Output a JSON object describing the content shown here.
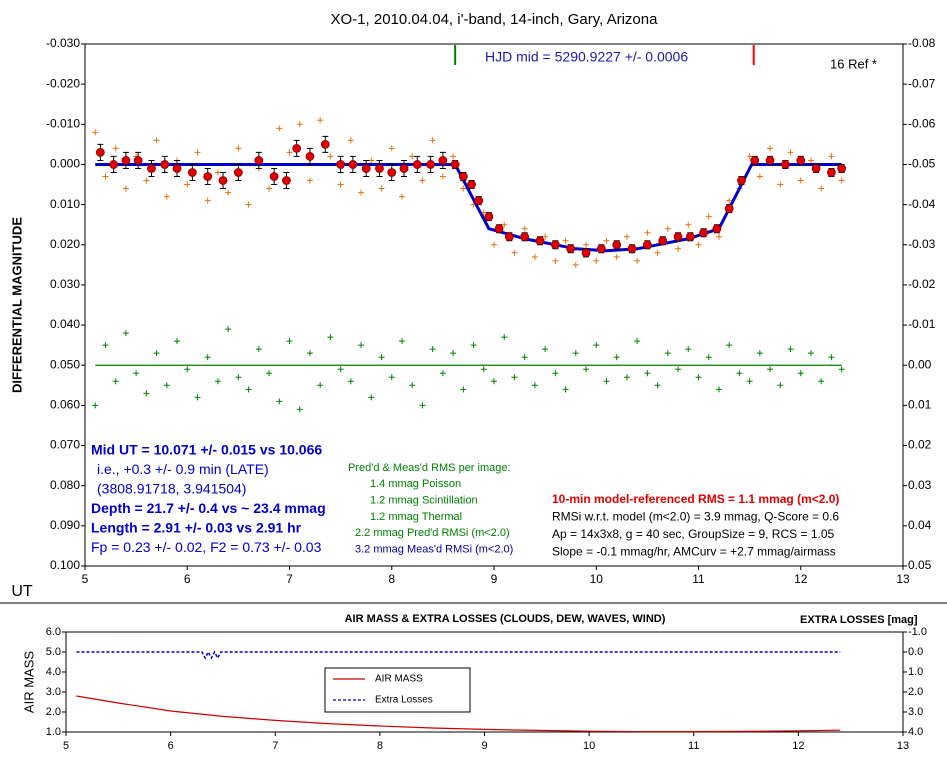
{
  "chart_data": [
    {
      "type": "scatter",
      "title": "XO-1, 2010.04.04, i'-band, 14-inch, Gary, Arizona",
      "y_label": "DIFFERENTIAL MAGNITUDE",
      "x_label": "UT",
      "hjd_note": "HJD mid = 5290.9227 +/- 0.0006",
      "ref_note": "16 Ref *",
      "markers": [
        {
          "x": 8.62,
          "color": "#008000"
        },
        {
          "x": 11.54,
          "color": "#ff0000"
        }
      ],
      "xlim": [
        5,
        13
      ],
      "xticks": [
        5,
        6,
        7,
        8,
        9,
        10,
        11,
        12,
        13
      ],
      "ylim": [
        0.1,
        -0.03
      ],
      "yticks": [
        {
          "value": -0.03,
          "label": "-0.030"
        },
        {
          "value": -0.02,
          "label": "-0.020"
        },
        {
          "value": -0.01,
          "label": "-0.010"
        },
        {
          "value": 0,
          "label": "0.000"
        },
        {
          "value": 0.01,
          "label": "0.010"
        },
        {
          "value": 0.02,
          "label": "0.020"
        },
        {
          "value": 0.03,
          "label": "0.030"
        },
        {
          "value": 0.04,
          "label": "0.040"
        },
        {
          "value": 0.05,
          "label": "0.050"
        },
        {
          "value": 0.06,
          "label": "0.060"
        },
        {
          "value": 0.07,
          "label": "0.070"
        },
        {
          "value": 0.08,
          "label": "0.080"
        },
        {
          "value": 0.09,
          "label": "0.090"
        },
        {
          "value": 0.1,
          "label": "0.100"
        }
      ],
      "y2lim": [
        0.05,
        -0.08
      ],
      "y2ticks": [
        -0.08,
        -0.07,
        -0.06,
        -0.05,
        -0.04,
        -0.03,
        -0.02,
        -0.01,
        {
          "value": 0,
          "label": "0.00"
        },
        0.01,
        0.02,
        0.03,
        0.04,
        0.05
      ],
      "grid": false,
      "x": [
        5.1,
        5.2,
        5.3,
        5.4,
        5.5,
        5.6,
        5.7,
        5.8,
        5.9,
        6.0,
        6.1,
        6.2,
        6.3,
        6.4,
        6.5,
        6.6,
        6.7,
        6.8,
        6.9,
        7.0,
        7.1,
        7.2,
        7.3,
        7.4,
        7.5,
        7.6,
        7.7,
        7.8,
        7.9,
        8.0,
        8.1,
        8.2,
        8.3,
        8.4,
        8.5,
        8.6,
        8.7,
        8.8,
        8.9,
        9.0,
        9.1,
        9.2,
        9.3,
        9.4,
        9.5,
        9.6,
        9.7,
        9.8,
        9.9,
        10.0,
        10.1,
        10.2,
        10.3,
        10.4,
        10.5,
        10.6,
        10.7,
        10.8,
        10.9,
        11.0,
        11.1,
        11.2,
        11.3,
        11.4,
        11.5,
        11.6,
        11.7,
        11.8,
        11.9,
        12.0,
        12.1,
        12.2,
        12.3,
        12.4
      ],
      "series": [
        {
          "marker": "plus",
          "color": "#e87010",
          "axis": "y",
          "values": [
            -0.008,
            0.003,
            -0.004,
            0.006,
            -0.002,
            0.004,
            -0.006,
            0.008,
            -0.001,
            0.005,
            -0.003,
            0.009,
            0.002,
            0.007,
            -0.004,
            0.01,
            0.001,
            0.006,
            -0.009,
            -0.003,
            -0.01,
            0.004,
            -0.011,
            -0.002,
            0.005,
            -0.006,
            0.007,
            -0.001,
            0.006,
            -0.004,
            0.008,
            -0.002,
            0.004,
            -0.006,
            0.003,
            -0.002,
            0.006,
            0.01,
            0.012,
            0.02,
            0.015,
            0.022,
            0.016,
            0.023,
            0.018,
            0.024,
            0.019,
            0.025,
            0.02,
            0.024,
            0.019,
            0.023,
            0.018,
            0.024,
            0.017,
            0.022,
            0.016,
            0.021,
            0.015,
            0.02,
            0.013,
            0.018,
            0.009,
            0.006,
            -0.002,
            0.003,
            -0.004,
            0.005,
            -0.003,
            0.004,
            -0.001,
            0.006,
            -0.002,
            0.004
          ]
        },
        {
          "marker": "plus",
          "color": "#008000",
          "axis": "y2",
          "values": [
            0.01,
            -0.005,
            0.004,
            -0.008,
            0.002,
            0.007,
            -0.003,
            0.005,
            -0.006,
            0.001,
            0.008,
            -0.002,
            0.004,
            -0.009,
            0.003,
            0.006,
            -0.004,
            0.002,
            0.009,
            -0.006,
            0.011,
            -0.003,
            0.005,
            -0.007,
            0.001,
            0.004,
            -0.005,
            0.008,
            -0.002,
            0.003,
            -0.006,
            0.005,
            0.01,
            -0.004,
            0.002,
            -0.003,
            0.006,
            -0.005,
            0.001,
            0.004,
            -0.007,
            0.003,
            -0.002,
            0.005,
            -0.004,
            0.002,
            0.006,
            -0.003,
            0.001,
            -0.005,
            0.004,
            -0.002,
            0.003,
            -0.006,
            0.002,
            0.005,
            -0.003,
            0.001,
            -0.004,
            0.003,
            -0.002,
            0.006,
            -0.005,
            0.002,
            0.004,
            -0.003,
            0.001,
            0.005,
            -0.004,
            0.002,
            -0.003,
            0.004,
            -0.002,
            0.001
          ]
        },
        {
          "marker": "line",
          "color": "#008000",
          "axis": "y2",
          "x": [
            5.1,
            12.4
          ],
          "values": [
            0,
            0
          ]
        },
        {
          "marker": "line-bold",
          "color": "#0000cc",
          "axis": "y",
          "x": [
            5.1,
            8.62,
            8.95,
            9.3,
            9.8,
            10.1,
            10.4,
            10.9,
            11.2,
            11.52,
            12.4
          ],
          "values": [
            0,
            0,
            0.016,
            0.0185,
            0.021,
            0.0215,
            0.021,
            0.0185,
            0.016,
            0,
            0
          ]
        },
        {
          "marker": "circle-error",
          "color": "#e00000",
          "axis": "y",
          "x": [
            5.15,
            5.28,
            5.4,
            5.52,
            5.65,
            5.78,
            5.9,
            6.05,
            6.2,
            6.35,
            6.5,
            6.7,
            6.85,
            6.97,
            7.07,
            7.2,
            7.35,
            7.5,
            7.62,
            7.75,
            7.88,
            8.0,
            8.12,
            8.25,
            8.38,
            8.5,
            8.62,
            8.7,
            8.78,
            8.85,
            8.95,
            9.05,
            9.15,
            9.3,
            9.45,
            9.6,
            9.75,
            9.9,
            10.05,
            10.2,
            10.35,
            10.5,
            10.65,
            10.8,
            10.92,
            11.05,
            11.18,
            11.3,
            11.42,
            11.55,
            11.7,
            11.85,
            12.0,
            12.15,
            12.3,
            12.4
          ],
          "values": [
            -0.003,
            0,
            -0.001,
            -0.001,
            0.001,
            0,
            0.001,
            0.002,
            0.003,
            0.004,
            0.002,
            -0.001,
            0.003,
            0.004,
            -0.004,
            -0.002,
            -0.005,
            0,
            0,
            0.001,
            0.001,
            0.002,
            0.001,
            0,
            0,
            -0.001,
            0,
            0.003,
            0.005,
            0.009,
            0.013,
            0.016,
            0.018,
            0.018,
            0.019,
            0.02,
            0.021,
            0.022,
            0.021,
            0.02,
            0.021,
            0.02,
            0.019,
            0.018,
            0.018,
            0.017,
            0.016,
            0.011,
            0.004,
            -0.001,
            -0.001,
            0,
            -0.001,
            0.001,
            0.002,
            0.001
          ],
          "errors": [
            0.002,
            0.002,
            0.002,
            0.002,
            0.002,
            0.002,
            0.002,
            0.002,
            0.002,
            0.002,
            0.002,
            0.002,
            0.002,
            0.002,
            0.002,
            0.002,
            0.002,
            0.002,
            0.002,
            0.002,
            0.002,
            0.002,
            0.002,
            0.002,
            0.002,
            0.002,
            0.001,
            0.001,
            0.001,
            0.001,
            0.001,
            0.001,
            0.001,
            0.001,
            0.001,
            0.001,
            0.001,
            0.001,
            0.001,
            0.001,
            0.001,
            0.001,
            0.001,
            0.001,
            0.001,
            0.001,
            0.001,
            0.001,
            0.001,
            0.001,
            0.001,
            0.001,
            0.001,
            0.001,
            0.001,
            0.001
          ]
        }
      ],
      "notes_left": [
        {
          "text": "Mid UT = 10.071 +/- 0.015 vs 10.066",
          "color": "#0000cc",
          "bold": true
        },
        {
          "text": "i.e., +0.3 +/- 0.9 min (LATE)",
          "color": "#0000cc",
          "bold": false
        },
        {
          "text": "(3808.91718, 3.941504)",
          "color": "#0000cc",
          "bold": false
        },
        {
          "text": "Depth = 21.7 +/- 0.4 vs  ~ 23.4 mmag",
          "color": "#0000cc",
          "bold": true
        },
        {
          "text": "Length = 2.91 +/- 0.03 vs 2.91 hr",
          "color": "#0000cc",
          "bold": true
        },
        {
          "text": "Fp = 0.23 +/- 0.02, F2 = 0.73 +/- 0.03",
          "color": "#0000cc",
          "bold": false
        }
      ],
      "notes_middle": [
        {
          "text": "Pred'd & Meas'd RMS per image:",
          "color": "#008000",
          "bold": false
        },
        {
          "text": "1.4 mmag Poisson",
          "color": "#008000",
          "bold": false
        },
        {
          "text": "1.2 mmag Scintillation",
          "color": "#008000",
          "bold": false
        },
        {
          "text": "1.2 mmag Thermal",
          "color": "#008000",
          "bold": false
        },
        {
          "text": "2.2 mmag Pred'd  RMSi (m<2.0)",
          "color": "#008000",
          "bold": false
        },
        {
          "text": "3.2 mmag Meas'd RMSi (m<2.0)",
          "color": "#000099",
          "bold": false
        }
      ],
      "notes_right": [
        {
          "text": "10-min model-referenced RMS = 1.1 mmag (m<2.0)",
          "color": "#e00000",
          "bold": true
        },
        {
          "text": "RMSi w.r.t. model (m<2.0) = 3.9 mmag, Q-Score = 0.6",
          "color": "#000000",
          "bold": false
        },
        {
          "text": "Ap = 14x3x8, g = 40 sec, GroupSize = 9, RCS = 1.05",
          "color": "#000000",
          "bold": false
        },
        {
          "text": "Slope = -0.1 mmag/hr, AMCurv = +2.7 mmag/airmass",
          "color": "#000000",
          "bold": false
        }
      ]
    },
    {
      "type": "line",
      "title": "AIR MASS & EXTRA LOSSES (CLOUDS, DEW, WAVES, WIND)",
      "y_label": "AIR MASS",
      "y2_label": "EXTRA LOSSES [mag]",
      "xlim": [
        5,
        13
      ],
      "xticks": [
        5,
        6,
        7,
        8,
        9,
        10,
        11,
        12,
        13
      ],
      "ylim": [
        1,
        6
      ],
      "yticks": [
        {
          "value": 1,
          "label": "1.0"
        },
        {
          "value": 2,
          "label": "2.0"
        },
        {
          "value": 3,
          "label": "3.0"
        },
        {
          "value": 4,
          "label": "4.0"
        },
        {
          "value": 5,
          "label": "5.0"
        },
        {
          "value": 6,
          "label": "6.0"
        }
      ],
      "y2lim": [
        4,
        -1
      ],
      "y2ticks": [
        {
          "value": -1,
          "label": "-1.0"
        },
        {
          "value": 0,
          "label": "0.0"
        },
        {
          "value": 1,
          "label": "1.0"
        },
        {
          "value": 2,
          "label": "2.0"
        },
        {
          "value": 3,
          "label": "3.0"
        },
        {
          "value": 4,
          "label": "4.0"
        }
      ],
      "grid": false,
      "legend": "center",
      "series": [
        {
          "name": "AIR MASS",
          "marker": "line",
          "color": "#cc0000",
          "axis": "y",
          "x": [
            5.1,
            5.5,
            6,
            6.5,
            7,
            7.5,
            8,
            8.5,
            9,
            9.5,
            10,
            10.5,
            11,
            11.5,
            12,
            12.4
          ],
          "values": [
            2.8,
            2.45,
            2.05,
            1.78,
            1.58,
            1.42,
            1.3,
            1.2,
            1.13,
            1.08,
            1.04,
            1.02,
            1.02,
            1.03,
            1.06,
            1.09
          ]
        },
        {
          "name": "Extra Losses",
          "marker": "dashed",
          "color": "#0000cc",
          "axis": "y2",
          "x": [
            5.1,
            6.3,
            6.33,
            6.36,
            6.39,
            6.42,
            6.45,
            6.48,
            12.4
          ],
          "values": [
            0,
            0,
            0.3,
            0,
            0.3,
            0,
            0.3,
            0,
            0
          ]
        }
      ]
    }
  ]
}
